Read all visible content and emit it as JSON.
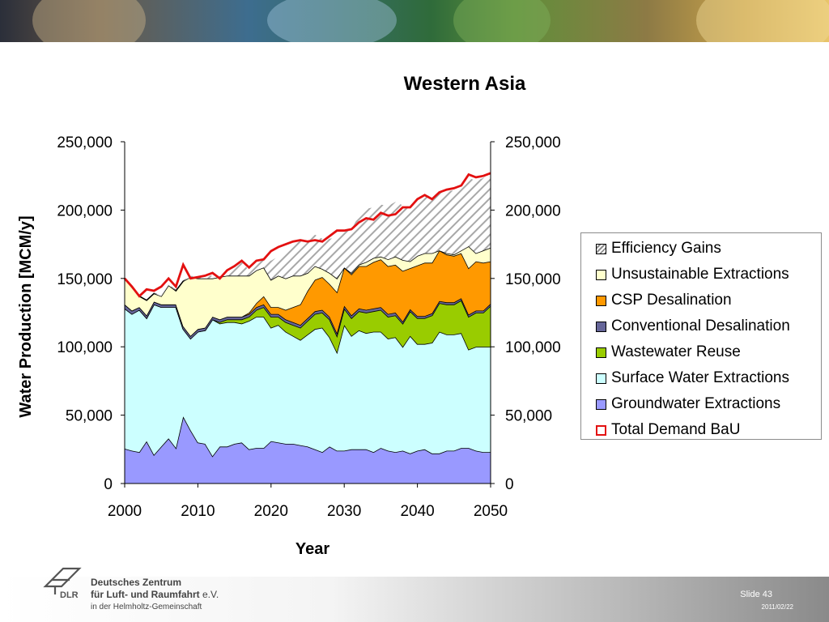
{
  "header": {
    "banner_colors": [
      "#2b2f3a",
      "#3d6d8f",
      "#2f6b3a",
      "#c9a24a"
    ]
  },
  "chart_data": {
    "type": "area",
    "title": "Western Asia",
    "xlabel": "Year",
    "ylabel": "Water Production [MCM/y]",
    "xlim": [
      2000,
      2050
    ],
    "ylim": [
      0,
      250000
    ],
    "x_ticks": [
      "2000",
      "2010",
      "2020",
      "2030",
      "2040",
      "2050"
    ],
    "y_ticks": [
      "0",
      "50,000",
      "100,000",
      "150,000",
      "200,000",
      "250,000"
    ],
    "y_ticks_right": [
      "0",
      "50,000",
      "100,000",
      "150,000",
      "200,000",
      "250,000"
    ],
    "x": [
      2000,
      2001,
      2002,
      2003,
      2004,
      2005,
      2006,
      2007,
      2008,
      2009,
      2010,
      2011,
      2012,
      2013,
      2014,
      2015,
      2016,
      2017,
      2018,
      2019,
      2020,
      2021,
      2022,
      2023,
      2024,
      2025,
      2026,
      2027,
      2028,
      2029,
      2030,
      2031,
      2032,
      2033,
      2034,
      2035,
      2036,
      2037,
      2038,
      2039,
      2040,
      2041,
      2042,
      2043,
      2044,
      2045,
      2046,
      2047,
      2048,
      2049,
      2050
    ],
    "grid": false,
    "legend_position": "right",
    "series": [
      {
        "name": "Groundwater Extractions",
        "color": "#9999ff",
        "values": [
          25500,
          24000,
          23000,
          31000,
          21000,
          27000,
          33000,
          26000,
          49000,
          39000,
          30000,
          29000,
          20000,
          27000,
          27000,
          29000,
          30000,
          25000,
          26000,
          26000,
          31000,
          30000,
          29000,
          29000,
          28000,
          27000,
          25000,
          23000,
          27000,
          24000,
          24000,
          25000,
          25000,
          25000,
          23000,
          26000,
          24000,
          23000,
          24000,
          22000,
          24000,
          25000,
          22000,
          22000,
          24000,
          24000,
          26000,
          26000,
          24000,
          23000,
          23000
        ]
      },
      {
        "name": "Surface Water Extractions",
        "color": "#ccffff",
        "values": [
          102500,
          100000,
          104000,
          90000,
          110000,
          102000,
          96000,
          103000,
          64000,
          67000,
          81000,
          83000,
          100000,
          90000,
          91000,
          89000,
          87000,
          94000,
          96000,
          96000,
          83000,
          86000,
          82000,
          79000,
          77000,
          82000,
          88000,
          91000,
          80000,
          72000,
          92000,
          83000,
          87000,
          85000,
          88000,
          85000,
          82000,
          84000,
          76000,
          86000,
          78000,
          77000,
          81000,
          89000,
          85000,
          85000,
          84000,
          72000,
          76000,
          77000,
          77000
        ]
      },
      {
        "name": "Wastewater Reuse",
        "color": "#99cc00",
        "values": [
          0,
          0,
          0,
          0,
          0,
          0,
          0,
          0,
          0,
          0,
          0,
          0,
          0,
          1000,
          2000,
          2000,
          3000,
          3000,
          5000,
          7000,
          8000,
          6000,
          7000,
          8000,
          9000,
          10000,
          11000,
          11000,
          13000,
          12000,
          12000,
          13000,
          14000,
          15000,
          15000,
          16000,
          16000,
          16000,
          17000,
          18000,
          19000,
          19000,
          20000,
          21000,
          22000,
          22000,
          24000,
          24000,
          25000,
          25000,
          30000
        ]
      },
      {
        "name": "Conventional Desalination",
        "color": "#666699",
        "values": [
          3000,
          2500,
          2000,
          2000,
          2000,
          2000,
          2000,
          2000,
          2000,
          2000,
          2000,
          2000,
          2000,
          2000,
          2000,
          2000,
          2000,
          2000,
          2000,
          2000,
          2000,
          2000,
          2000,
          2000,
          2000,
          2000,
          2000,
          2000,
          2000,
          2000,
          2000,
          2000,
          2000,
          2000,
          2000,
          2000,
          2000,
          2000,
          1500,
          1500,
          1500,
          1500,
          1500,
          1500,
          1500,
          1500,
          1500,
          1500,
          1500,
          1500,
          1500
        ]
      },
      {
        "name": "CSP Desalination",
        "color": "#ff9900",
        "values": [
          0,
          0,
          0,
          0,
          0,
          0,
          0,
          0,
          0,
          0,
          0,
          0,
          0,
          0,
          0,
          0,
          0,
          1000,
          3000,
          6000,
          5000,
          5000,
          7000,
          11000,
          15000,
          20000,
          23000,
          24000,
          24000,
          30000,
          28000,
          30000,
          31000,
          32000,
          34000,
          35000,
          35000,
          35000,
          37000,
          30000,
          37000,
          39000,
          37000,
          37000,
          35000,
          34000,
          33000,
          34000,
          36000,
          35000,
          31000
        ]
      },
      {
        "name": "Unsustainable Extractions",
        "color": "#ffffcc",
        "values": [
          19000,
          17000,
          8000,
          11000,
          6000,
          6000,
          14000,
          10000,
          33000,
          43000,
          37000,
          36000,
          28000,
          31000,
          30000,
          30000,
          30000,
          27000,
          24000,
          21000,
          20000,
          23000,
          23000,
          23000,
          21000,
          13000,
          10000,
          6000,
          8000,
          10000,
          0,
          1000,
          1000,
          3000,
          3000,
          2000,
          5000,
          6000,
          8000,
          5000,
          7000,
          7000,
          7000,
          0,
          1000,
          1000,
          2000,
          16000,
          6000,
          9000,
          10000
        ]
      },
      {
        "name": "Efficiency Gains",
        "color": "#e2e2e2",
        "values": [
          0,
          0,
          0,
          0,
          0,
          1000,
          1000,
          0,
          0,
          1000,
          1000,
          2000,
          2000,
          0,
          5000,
          6000,
          10000,
          4000,
          7000,
          8000,
          14000,
          14000,
          20000,
          22000,
          26000,
          25000,
          23000,
          22000,
          25000,
          30000,
          27000,
          32000,
          36000,
          39000,
          37000,
          38000,
          39000,
          40000,
          40000,
          40000,
          42000,
          43000,
          41000,
          43000,
          45000,
          47000,
          47000,
          50000,
          53000,
          53000,
          55000
        ]
      }
    ],
    "total_demand": {
      "name": "Total Demand BaU",
      "color": "#e31010",
      "values": [
        150000,
        144000,
        137000,
        142000,
        141000,
        144000,
        150000,
        144000,
        160000,
        150000,
        151000,
        152000,
        154000,
        150000,
        156000,
        159000,
        163000,
        158000,
        163000,
        164000,
        170000,
        173000,
        175000,
        177000,
        178000,
        177000,
        178000,
        177000,
        181000,
        185000,
        185000,
        186000,
        191000,
        194000,
        193000,
        198000,
        196000,
        197000,
        202000,
        202000,
        208000,
        211000,
        208000,
        213000,
        215000,
        216000,
        218000,
        226000,
        224000,
        225000,
        227000
      ]
    }
  },
  "footer": {
    "org_line1": "Deutsches Zentrum",
    "org_line2a": "für Luft- und Raumfahrt",
    "org_line2b": " e.V.",
    "org_line3": "in der Helmholtz-Gemeinschaft",
    "logo_text": "DLR",
    "slide": "Slide 43",
    "date": "2011/02/22"
  }
}
